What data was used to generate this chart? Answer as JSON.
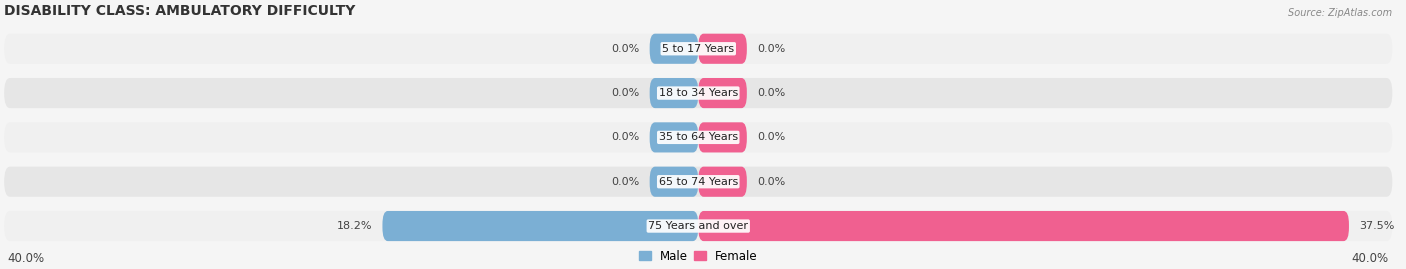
{
  "title": "DISABILITY CLASS: AMBULATORY DIFFICULTY",
  "source": "Source: ZipAtlas.com",
  "categories": [
    "5 to 17 Years",
    "18 to 34 Years",
    "35 to 64 Years",
    "65 to 74 Years",
    "75 Years and over"
  ],
  "male_values": [
    0.0,
    0.0,
    0.0,
    0.0,
    18.2
  ],
  "female_values": [
    0.0,
    0.0,
    0.0,
    0.0,
    37.5
  ],
  "x_max": 40.0,
  "min_bar_width": 2.8,
  "male_color": "#7bafd4",
  "female_color": "#f06090",
  "row_bg_colors": [
    "#f0f0f0",
    "#e6e6e6"
  ],
  "title_fontsize": 10,
  "label_fontsize": 8,
  "value_fontsize": 8,
  "axis_label_fontsize": 8.5,
  "legend_fontsize": 8.5
}
